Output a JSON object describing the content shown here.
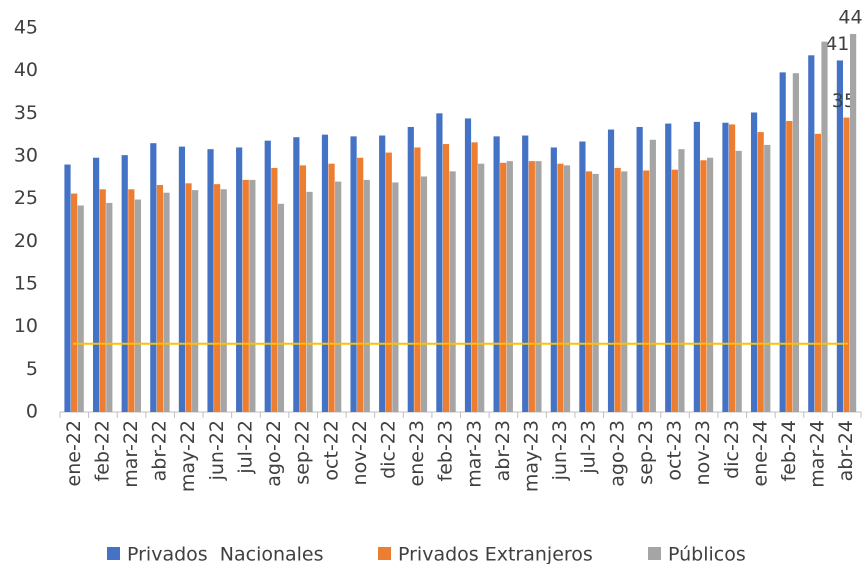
{
  "chart_data": {
    "type": "bar",
    "categories": [
      "ene-22",
      "feb-22",
      "mar-22",
      "abr-22",
      "may-22",
      "jun-22",
      "jul-22",
      "ago-22",
      "sep-22",
      "oct-22",
      "nov-22",
      "dic-22",
      "ene-23",
      "feb-23",
      "mar-23",
      "abr-23",
      "may-23",
      "jun-23",
      "jul-23",
      "ago-23",
      "sep-23",
      "oct-23",
      "nov-23",
      "dic-23",
      "ene-24",
      "feb-24",
      "mar-24",
      "abr-24"
    ],
    "series": [
      {
        "name": "Privados  Nacionales",
        "color": "#4472c4",
        "values": [
          29.0,
          29.8,
          30.1,
          31.5,
          31.1,
          30.8,
          31.0,
          31.8,
          32.2,
          32.5,
          32.3,
          32.4,
          33.4,
          35.0,
          34.4,
          32.3,
          32.4,
          31.0,
          31.7,
          33.1,
          33.4,
          33.8,
          34.0,
          33.9,
          35.1,
          39.8,
          41.8,
          41.2
        ],
        "value_labels": [
          null,
          null,
          null,
          null,
          null,
          null,
          null,
          null,
          null,
          null,
          null,
          null,
          null,
          null,
          null,
          null,
          null,
          null,
          null,
          null,
          null,
          null,
          null,
          null,
          null,
          null,
          null,
          "41"
        ]
      },
      {
        "name": "Privados Extranjeros",
        "color": "#ed7d31",
        "values": [
          25.6,
          26.1,
          26.1,
          26.6,
          26.8,
          26.7,
          27.2,
          28.6,
          28.9,
          29.1,
          29.8,
          30.4,
          31.0,
          31.4,
          31.6,
          29.2,
          29.4,
          29.1,
          28.2,
          28.6,
          28.3,
          28.4,
          29.5,
          33.7,
          32.8,
          34.1,
          32.6,
          34.5
        ],
        "value_labels": [
          null,
          null,
          null,
          null,
          null,
          null,
          null,
          null,
          null,
          null,
          null,
          null,
          null,
          null,
          null,
          null,
          null,
          null,
          null,
          null,
          null,
          null,
          null,
          null,
          null,
          null,
          null,
          "35"
        ]
      },
      {
        "name": "Públicos",
        "color": "#a5a5a5",
        "values": [
          24.2,
          24.5,
          24.9,
          25.7,
          26.0,
          26.1,
          27.2,
          24.4,
          25.8,
          27.0,
          27.2,
          26.9,
          27.6,
          28.2,
          29.1,
          29.4,
          29.4,
          28.9,
          27.9,
          28.2,
          31.9,
          30.8,
          29.8,
          30.6,
          31.3,
          39.7,
          43.4,
          44.3
        ],
        "value_labels": [
          null,
          null,
          null,
          null,
          null,
          null,
          null,
          null,
          null,
          null,
          null,
          null,
          null,
          null,
          null,
          null,
          null,
          null,
          null,
          null,
          null,
          null,
          null,
          null,
          null,
          null,
          null,
          "44"
        ]
      }
    ],
    "reference_line": {
      "value": 8,
      "color": "#ffc000"
    },
    "ylim": [
      0,
      45
    ],
    "yticks": [
      0,
      5,
      10,
      15,
      20,
      25,
      30,
      35,
      40,
      45
    ],
    "grid": false,
    "legend": "bottom"
  }
}
